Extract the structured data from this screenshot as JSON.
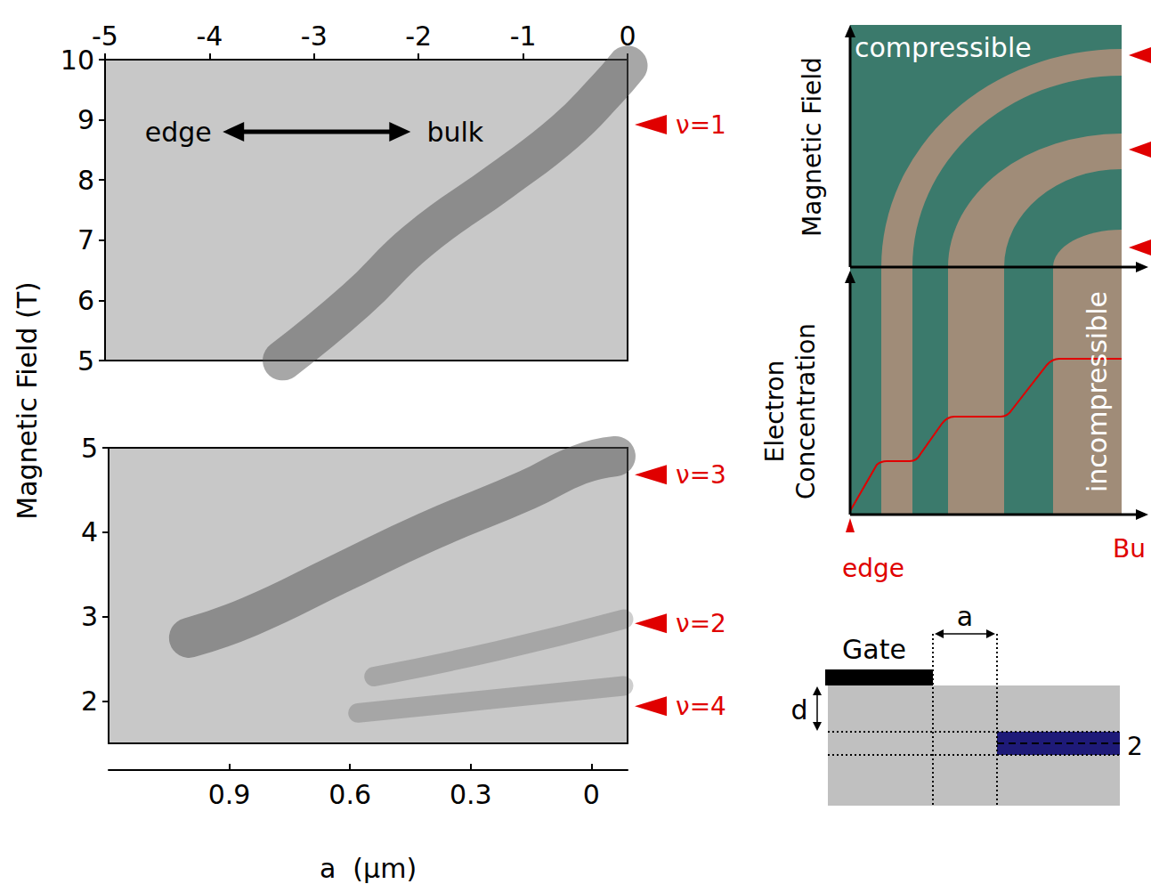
{
  "y_label": "Magnetic Field (T)",
  "chart_data": [
    {
      "type": "line",
      "xlim": [
        -5,
        0
      ],
      "xticks": [
        -5,
        -4,
        -3,
        -2,
        -1,
        0
      ],
      "ylim": [
        5,
        10
      ],
      "yticks": [
        5,
        6,
        7,
        8,
        9,
        10
      ],
      "grid": false,
      "annotations": [
        {
          "text": "edge",
          "x": -4.3,
          "y": 8.8
        },
        {
          "text": "bulk",
          "x": -1.65,
          "y": 8.8
        }
      ],
      "series": [
        {
          "name": "ν=1",
          "color": "#505050",
          "line_style": "bold",
          "arrow_at": 8.92,
          "x": [
            -3.3,
            -2.6,
            -2.0,
            -1.2,
            -0.6,
            -0.2,
            0
          ],
          "values": [
            5.0,
            6.0,
            7.0,
            8.0,
            8.8,
            9.5,
            9.9
          ]
        }
      ]
    },
    {
      "type": "line",
      "xlabel": "a  (µm)",
      "xlim": [
        1.2,
        -0.09
      ],
      "xticks": [
        0.9,
        0.6,
        0.3,
        0
      ],
      "ylim": [
        1.5,
        5
      ],
      "yticks": [
        2,
        3,
        4,
        5
      ],
      "grid": false,
      "series": [
        {
          "name": "ν=3",
          "color": "#505050",
          "line_style": "bold",
          "arrow_at": 4.68,
          "x": [
            1.0,
            0.85,
            0.63,
            0.41,
            0.16,
            0.03,
            -0.06
          ],
          "values": [
            2.75,
            3.0,
            3.5,
            4.0,
            4.5,
            4.8,
            4.9
          ]
        },
        {
          "name": "ν=2",
          "color": "#505050",
          "line_style": "faint",
          "arrow_at": 2.92,
          "x": [
            0.54,
            0.23,
            -0.08
          ],
          "values": [
            2.29,
            2.6,
            2.97
          ]
        },
        {
          "name": "ν=4",
          "color": "#505050",
          "line_style": "faint",
          "arrow_at": 1.94,
          "x": [
            0.58,
            0.25,
            -0.08
          ],
          "values": [
            1.86,
            2.02,
            2.18
          ]
        }
      ]
    }
  ],
  "diagram": {
    "upper": {
      "y_label": "Magnetic Field",
      "text": "compressible"
    },
    "lower": {
      "y_label": "Electron Concentration",
      "text": "incompressible",
      "left_label": "edge",
      "right_label": "Bu"
    },
    "cross_section": {
      "gate": "Gate",
      "gap": "a",
      "depth": "d",
      "layer": "2"
    }
  }
}
